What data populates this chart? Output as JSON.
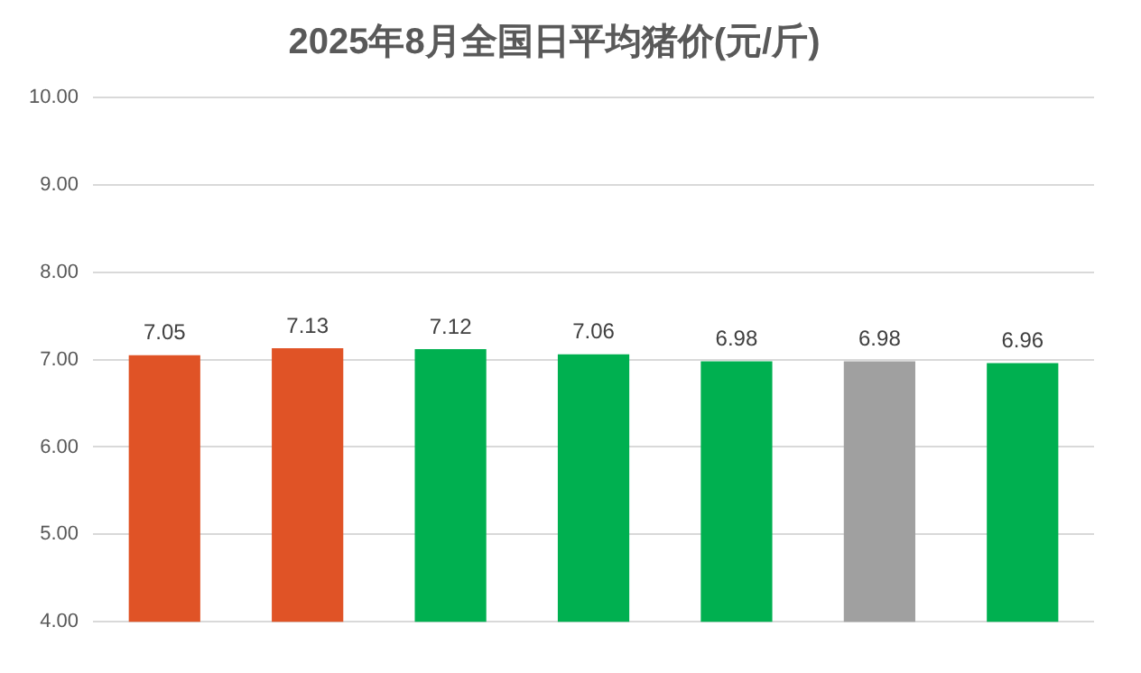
{
  "chart_data": {
    "type": "bar",
    "title": "2025年8月全国日平均猪价(元/斤)",
    "categories": [
      null,
      null,
      null,
      null,
      null,
      null,
      null
    ],
    "values": [
      7.05,
      7.13,
      7.12,
      7.06,
      6.98,
      6.98,
      6.96
    ],
    "colors": [
      "#e05326",
      "#e05326",
      "#00b050",
      "#00b050",
      "#00b050",
      "#a0a0a0",
      "#00b050"
    ],
    "ylim": [
      4,
      10
    ],
    "yticks": [
      {
        "value": 4,
        "label": "4.00"
      },
      {
        "value": 5,
        "label": "5.00"
      },
      {
        "value": 6,
        "label": "6.00"
      },
      {
        "value": 7,
        "label": "7.00"
      },
      {
        "value": 8,
        "label": "8.00"
      },
      {
        "value": 9,
        "label": "9.00"
      },
      {
        "value": 10,
        "label": "10.00"
      }
    ],
    "grid": "y",
    "data_labels": true,
    "legend": false
  }
}
